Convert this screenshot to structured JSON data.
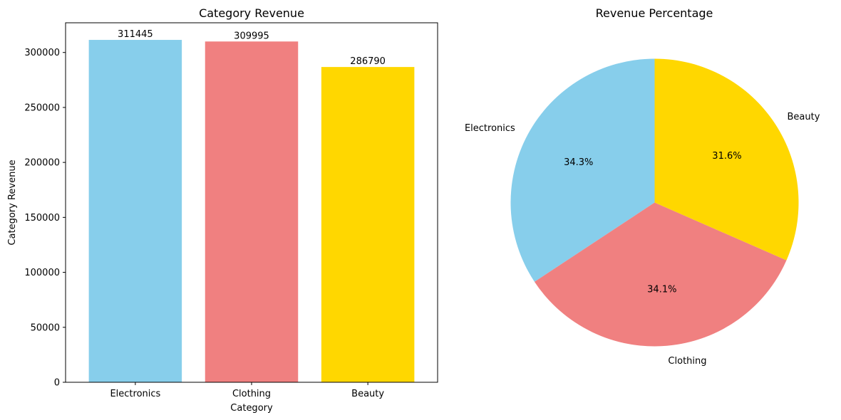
{
  "chart_data": [
    {
      "type": "bar",
      "title": "Category Revenue",
      "xlabel": "Category",
      "ylabel": "Category Revenue",
      "categories": [
        "Electronics",
        "Clothing",
        "Beauty"
      ],
      "values": [
        311445,
        309995,
        286790
      ],
      "value_labels": [
        "311445",
        "309995",
        "286790"
      ],
      "colors": [
        "#87CEEB",
        "#F08080",
        "#FFD700"
      ],
      "ylim": [
        0,
        327012
      ],
      "yticks": [
        0,
        50000,
        100000,
        150000,
        200000,
        250000,
        300000
      ],
      "ytick_labels": [
        "0",
        "50000",
        "100000",
        "150000",
        "200000",
        "250000",
        "300000"
      ],
      "grid": false
    },
    {
      "type": "pie",
      "title": "Revenue Percentage",
      "labels": [
        "Electronics",
        "Clothing",
        "Beauty"
      ],
      "values": [
        311445,
        309995,
        286790
      ],
      "percent_labels": [
        "34.3%",
        "34.1%",
        "31.6%"
      ],
      "colors": [
        "#87CEEB",
        "#F08080",
        "#FFD700"
      ],
      "start_angle": 90
    }
  ]
}
